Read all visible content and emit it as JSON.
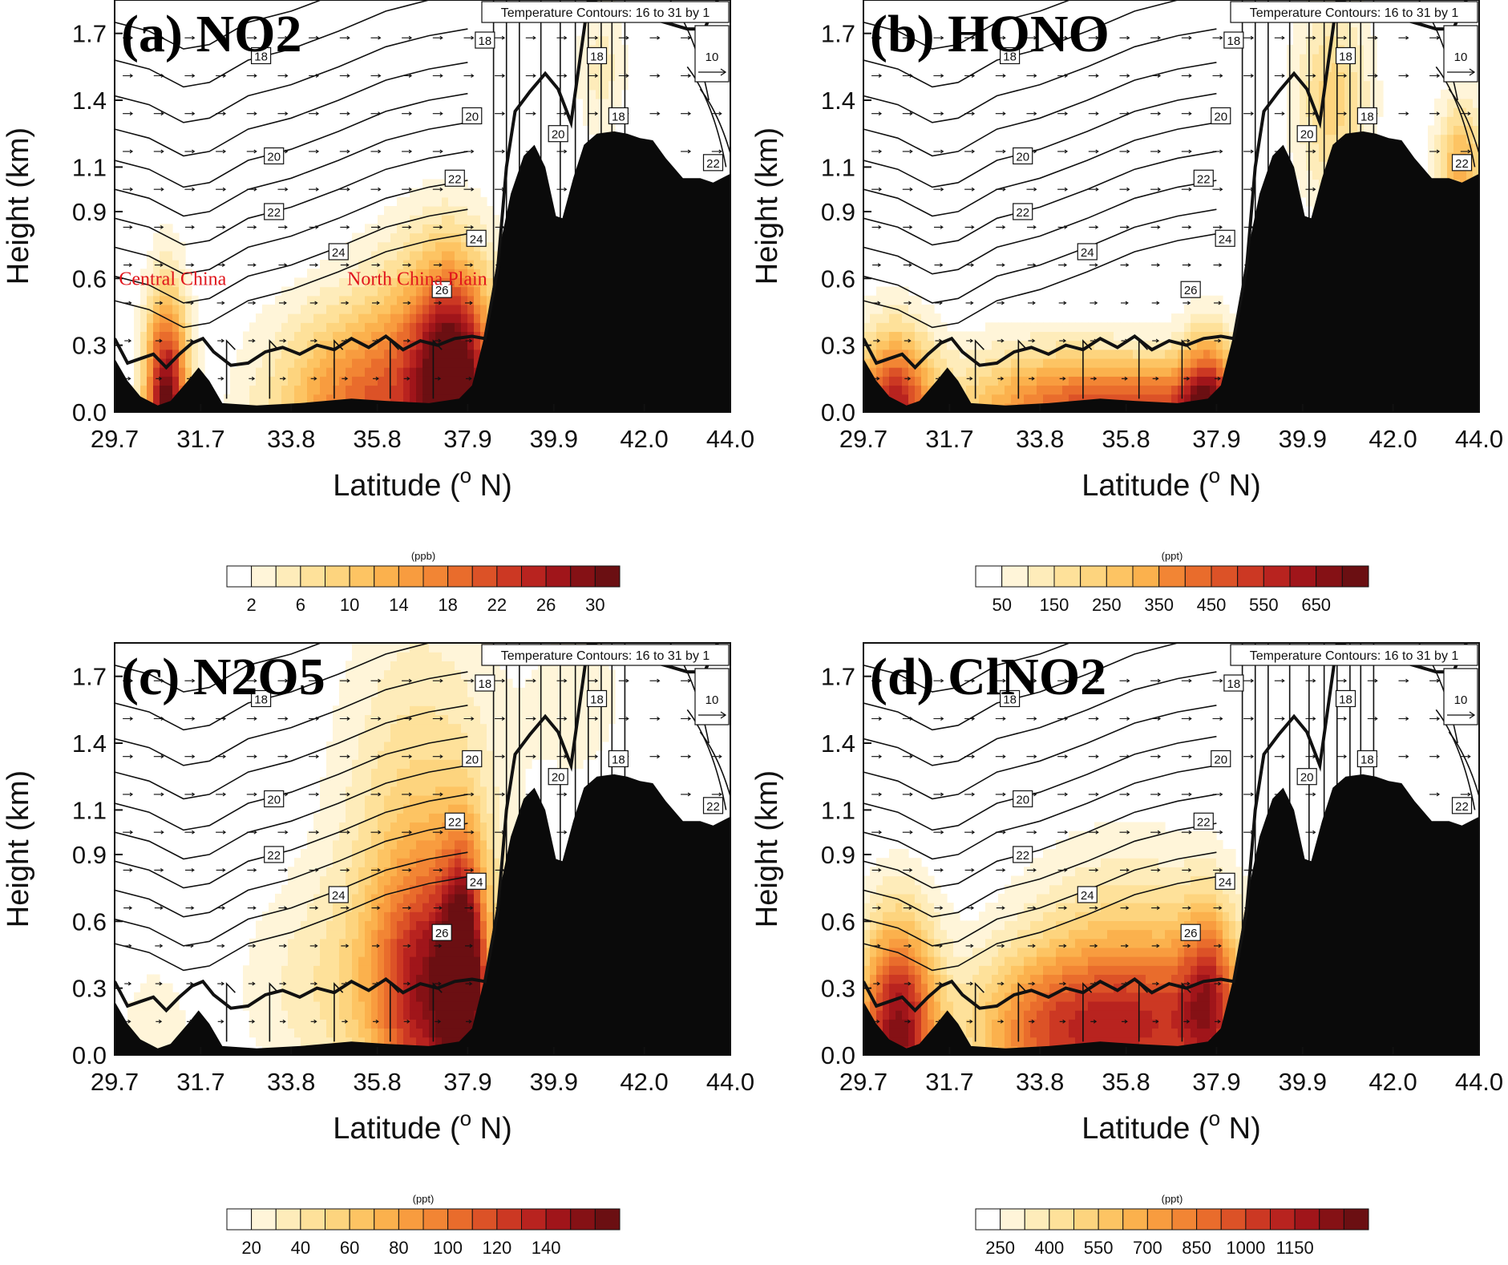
{
  "figure": {
    "temperature_legend": "Temperature Contours: 16 to 31 by 1",
    "wind_reference_value": "10",
    "colors": {
      "ramp": [
        "#ffffff",
        "#fff5d9",
        "#feecba",
        "#fee19a",
        "#fdd47e",
        "#fdc463",
        "#fbb14d",
        "#f89c3f",
        "#f28534",
        "#e96c2c",
        "#dc5227",
        "#cc3823",
        "#b8231f",
        "#a0151a",
        "#851115",
        "#6b0f12"
      ],
      "terrain": "#0a0a0a",
      "boundary_layer": "#111111",
      "annotation": "#e0141b"
    },
    "annotations": [
      {
        "text": "Central China",
        "lat": 29.8,
        "height": 0.6
      },
      {
        "text": "North China Plain",
        "lat": 35.1,
        "height": 0.6
      }
    ]
  },
  "chart_data": [
    {
      "type": "heatmap",
      "panel_label": "(a) NO2",
      "xlabel": "Latitude (o N)",
      "ylabel": "Height (km)",
      "x_ticks": [
        "29.7",
        "31.7",
        "33.8",
        "35.8",
        "37.9",
        "39.9",
        "42.0",
        "44.0"
      ],
      "y_ticks": [
        "0.0",
        "0.3",
        "0.6",
        "0.9",
        "1.1",
        "1.4",
        "1.7"
      ],
      "xlim": [
        29.7,
        44.0
      ],
      "ylim": [
        0.0,
        1.85
      ],
      "colorbar": {
        "unit": "(ppb)",
        "labels": [
          "2",
          "6",
          "10",
          "14",
          "18",
          "22",
          "26",
          "30"
        ],
        "levels": 16
      },
      "temperature_labels": [
        {
          "value": "18",
          "lat": 33.1,
          "height": 1.6
        },
        {
          "value": "20",
          "lat": 33.4,
          "height": 1.15
        },
        {
          "value": "22",
          "lat": 33.4,
          "height": 0.9
        },
        {
          "value": "24",
          "lat": 34.9,
          "height": 0.72
        },
        {
          "value": "26",
          "lat": 37.3,
          "height": 0.55
        },
        {
          "value": "22",
          "lat": 37.6,
          "height": 1.05
        },
        {
          "value": "24",
          "lat": 38.1,
          "height": 0.78
        },
        {
          "value": "20",
          "lat": 38.0,
          "height": 1.33
        },
        {
          "value": "18",
          "lat": 38.3,
          "height": 1.67
        },
        {
          "value": "18",
          "lat": 40.9,
          "height": 1.6
        },
        {
          "value": "18",
          "lat": 41.4,
          "height": 1.33
        },
        {
          "value": "20",
          "lat": 40.0,
          "height": 1.25
        },
        {
          "value": "22",
          "lat": 43.6,
          "height": 1.12
        },
        {
          "value": "20",
          "lat": 43.5,
          "height": 1.8
        }
      ],
      "sources": [
        {
          "lat": 30.9,
          "height": 0.0,
          "wx": 0.5,
          "wy": 0.5,
          "value": 1.0
        },
        {
          "lat": 35.6,
          "height": 0.0,
          "wx": 2.2,
          "wy": 0.45,
          "value": 0.6
        },
        {
          "lat": 37.6,
          "height": 0.05,
          "wx": 0.9,
          "wy": 0.55,
          "value": 0.9
        },
        {
          "lat": 37.0,
          "height": 0.45,
          "wx": 1.5,
          "wy": 0.45,
          "value": 0.22
        },
        {
          "lat": 41.0,
          "height": 1.55,
          "wx": 0.6,
          "wy": 0.35,
          "value": 0.15
        }
      ]
    },
    {
      "type": "heatmap",
      "panel_label": "(b) HONO",
      "xlabel": "Latitude (o N)",
      "ylabel": "Height (km)",
      "x_ticks": [
        "29.7",
        "31.7",
        "33.8",
        "35.8",
        "37.9",
        "39.9",
        "42.0",
        "44.0"
      ],
      "y_ticks": [
        "0.0",
        "0.3",
        "0.6",
        "0.9",
        "1.1",
        "1.4",
        "1.7"
      ],
      "xlim": [
        29.7,
        44.0
      ],
      "ylim": [
        0.0,
        1.85
      ],
      "colorbar": {
        "unit": "(ppt)",
        "labels": [
          "50",
          "150",
          "250",
          "350",
          "450",
          "550",
          "650"
        ],
        "levels": 15
      },
      "temperature_labels": [
        {
          "value": "18",
          "lat": 33.1,
          "height": 1.6
        },
        {
          "value": "20",
          "lat": 33.4,
          "height": 1.15
        },
        {
          "value": "22",
          "lat": 33.4,
          "height": 0.9
        },
        {
          "value": "24",
          "lat": 34.9,
          "height": 0.72
        },
        {
          "value": "26",
          "lat": 37.3,
          "height": 0.55
        },
        {
          "value": "22",
          "lat": 37.6,
          "height": 1.05
        },
        {
          "value": "24",
          "lat": 38.1,
          "height": 0.78
        },
        {
          "value": "20",
          "lat": 38.0,
          "height": 1.33
        },
        {
          "value": "18",
          "lat": 38.3,
          "height": 1.67
        },
        {
          "value": "18",
          "lat": 40.9,
          "height": 1.6
        },
        {
          "value": "18",
          "lat": 41.4,
          "height": 1.33
        },
        {
          "value": "20",
          "lat": 40.0,
          "height": 1.25
        },
        {
          "value": "22",
          "lat": 43.6,
          "height": 1.12
        },
        {
          "value": "20",
          "lat": 43.5,
          "height": 1.8
        }
      ],
      "sources": [
        {
          "lat": 30.4,
          "height": 0.0,
          "wx": 0.9,
          "wy": 0.35,
          "value": 0.8
        },
        {
          "lat": 36.3,
          "height": 0.0,
          "wx": 2.5,
          "wy": 0.25,
          "value": 0.65
        },
        {
          "lat": 33.5,
          "height": 0.0,
          "wx": 2.0,
          "wy": 0.3,
          "value": 0.35
        },
        {
          "lat": 37.7,
          "height": 0.0,
          "wx": 0.6,
          "wy": 0.35,
          "value": 0.6
        },
        {
          "lat": 40.6,
          "height": 1.4,
          "wx": 0.9,
          "wy": 0.45,
          "value": 0.28
        },
        {
          "lat": 43.6,
          "height": 1.1,
          "wx": 0.6,
          "wy": 0.3,
          "value": 0.4
        }
      ]
    },
    {
      "type": "heatmap",
      "panel_label": "(c) N2O5",
      "xlabel": "Latitude (o N)",
      "ylabel": "Height (km)",
      "x_ticks": [
        "29.7",
        "31.7",
        "33.8",
        "35.8",
        "37.9",
        "39.9",
        "42.0",
        "44.0"
      ],
      "y_ticks": [
        "0.0",
        "0.3",
        "0.6",
        "0.9",
        "1.1",
        "1.4",
        "1.7"
      ],
      "xlim": [
        29.7,
        44.0
      ],
      "ylim": [
        0.0,
        1.85
      ],
      "colorbar": {
        "unit": "(ppt)",
        "labels": [
          "20",
          "40",
          "60",
          "80",
          "100",
          "120",
          "140"
        ],
        "levels": 16
      },
      "temperature_labels": [
        {
          "value": "18",
          "lat": 33.1,
          "height": 1.6
        },
        {
          "value": "20",
          "lat": 33.4,
          "height": 1.15
        },
        {
          "value": "22",
          "lat": 33.4,
          "height": 0.9
        },
        {
          "value": "24",
          "lat": 34.9,
          "height": 0.72
        },
        {
          "value": "26",
          "lat": 37.3,
          "height": 0.55
        },
        {
          "value": "22",
          "lat": 37.6,
          "height": 1.05
        },
        {
          "value": "24",
          "lat": 38.1,
          "height": 0.78
        },
        {
          "value": "20",
          "lat": 38.0,
          "height": 1.33
        },
        {
          "value": "18",
          "lat": 38.3,
          "height": 1.67
        },
        {
          "value": "18",
          "lat": 40.9,
          "height": 1.6
        },
        {
          "value": "18",
          "lat": 41.4,
          "height": 1.33
        },
        {
          "value": "20",
          "lat": 40.0,
          "height": 1.25
        },
        {
          "value": "22",
          "lat": 43.6,
          "height": 1.12
        },
        {
          "value": "20",
          "lat": 43.5,
          "height": 1.8
        }
      ],
      "sources": [
        {
          "lat": 37.0,
          "height": 0.25,
          "wx": 1.3,
          "wy": 0.6,
          "value": 0.7
        },
        {
          "lat": 37.8,
          "height": 0.3,
          "wx": 0.5,
          "wy": 0.6,
          "value": 0.8
        },
        {
          "lat": 36.8,
          "height": 1.0,
          "wx": 1.9,
          "wy": 1.0,
          "value": 0.25
        },
        {
          "lat": 34.6,
          "height": 0.3,
          "wx": 2.0,
          "wy": 0.5,
          "value": 0.15
        },
        {
          "lat": 30.6,
          "height": 0.1,
          "wx": 0.8,
          "wy": 0.3,
          "value": 0.12
        },
        {
          "lat": 40.5,
          "height": 1.6,
          "wx": 1.2,
          "wy": 0.4,
          "value": 0.1
        }
      ]
    },
    {
      "type": "heatmap",
      "panel_label": "(d) ClNO2",
      "xlabel": "Latitude (o N)",
      "ylabel": "Height (km)",
      "x_ticks": [
        "29.7",
        "31.7",
        "33.8",
        "35.8",
        "37.9",
        "39.9",
        "42.0",
        "44.0"
      ],
      "y_ticks": [
        "0.0",
        "0.3",
        "0.6",
        "0.9",
        "1.1",
        "1.4",
        "1.7"
      ],
      "xlim": [
        29.7,
        44.0
      ],
      "ylim": [
        0.0,
        1.85
      ],
      "colorbar": {
        "unit": "(ppt)",
        "labels": [
          "250",
          "400",
          "550",
          "700",
          "850",
          "1000",
          "1150"
        ],
        "levels": 16
      },
      "temperature_labels": [
        {
          "value": "18",
          "lat": 33.1,
          "height": 1.6
        },
        {
          "value": "20",
          "lat": 33.4,
          "height": 1.15
        },
        {
          "value": "22",
          "lat": 33.4,
          "height": 0.9
        },
        {
          "value": "24",
          "lat": 34.9,
          "height": 0.72
        },
        {
          "value": "26",
          "lat": 37.3,
          "height": 0.55
        },
        {
          "value": "22",
          "lat": 37.6,
          "height": 1.05
        },
        {
          "value": "24",
          "lat": 38.1,
          "height": 0.78
        },
        {
          "value": "20",
          "lat": 38.0,
          "height": 1.33
        },
        {
          "value": "18",
          "lat": 38.3,
          "height": 1.67
        },
        {
          "value": "18",
          "lat": 40.9,
          "height": 1.6
        },
        {
          "value": "18",
          "lat": 41.4,
          "height": 1.33
        },
        {
          "value": "20",
          "lat": 40.0,
          "height": 1.25
        },
        {
          "value": "22",
          "lat": 43.6,
          "height": 1.12
        },
        {
          "value": "20",
          "lat": 43.5,
          "height": 1.8
        }
      ],
      "sources": [
        {
          "lat": 30.5,
          "height": 0.1,
          "wx": 0.9,
          "wy": 0.5,
          "value": 0.9
        },
        {
          "lat": 36.5,
          "height": 0.1,
          "wx": 2.6,
          "wy": 0.4,
          "value": 0.6
        },
        {
          "lat": 33.8,
          "height": 0.1,
          "wx": 1.8,
          "wy": 0.35,
          "value": 0.4
        },
        {
          "lat": 35.8,
          "height": 0.5,
          "wx": 2.5,
          "wy": 0.5,
          "value": 0.2
        },
        {
          "lat": 37.7,
          "height": 0.3,
          "wx": 0.6,
          "wy": 0.4,
          "value": 0.4
        }
      ]
    }
  ]
}
